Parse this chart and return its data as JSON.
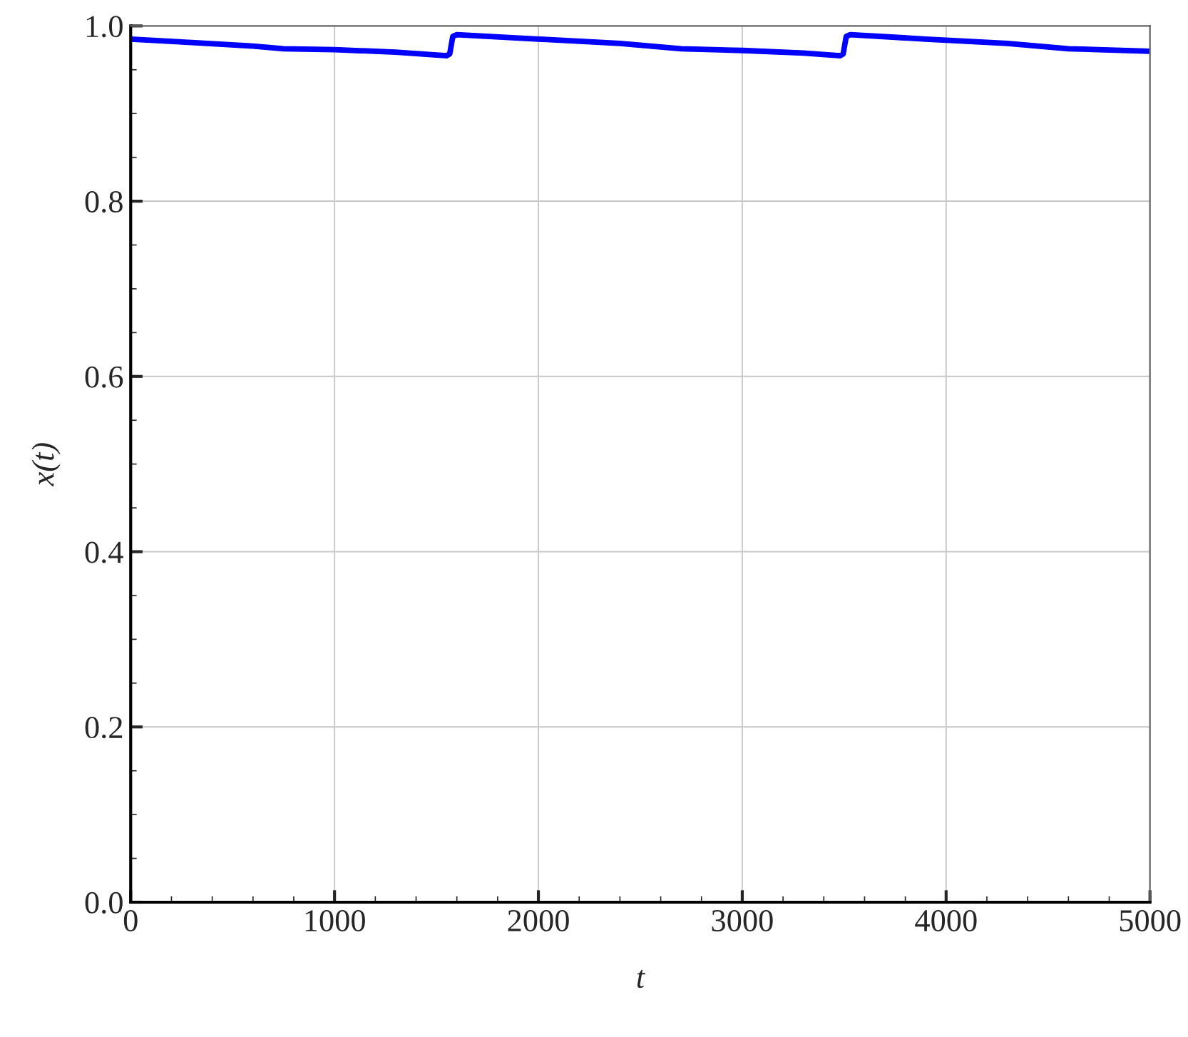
{
  "chart_data": {
    "type": "line",
    "xlabel": "t",
    "ylabel": "x(t)",
    "x": [
      0,
      300,
      600,
      750,
      1000,
      1300,
      1550,
      1565,
      1580,
      1600,
      2000,
      2400,
      2700,
      3000,
      3300,
      3480,
      3495,
      3510,
      3530,
      3900,
      4300,
      4600,
      5000
    ],
    "series": [
      {
        "color": "#0000ff",
        "values": [
          0.985,
          0.981,
          0.977,
          0.974,
          0.973,
          0.97,
          0.966,
          0.968,
          0.988,
          0.99,
          0.985,
          0.98,
          0.974,
          0.972,
          0.969,
          0.966,
          0.968,
          0.988,
          0.99,
          0.985,
          0.98,
          0.974,
          0.971
        ]
      }
    ],
    "xlim": [
      0,
      5000
    ],
    "ylim": [
      0,
      1
    ],
    "xticks": [
      0,
      1000,
      2000,
      3000,
      4000,
      5000
    ],
    "yticks": [
      {
        "value": 0,
        "label": "0.0"
      },
      {
        "value": 0.2,
        "label": "0.2"
      },
      {
        "value": 0.4,
        "label": "0.4"
      },
      {
        "value": 0.6,
        "label": "0.6"
      },
      {
        "value": 0.8,
        "label": "0.8"
      },
      {
        "value": 1,
        "label": "1.0"
      }
    ],
    "grid": true,
    "line_style": "solid",
    "marker": "none"
  }
}
